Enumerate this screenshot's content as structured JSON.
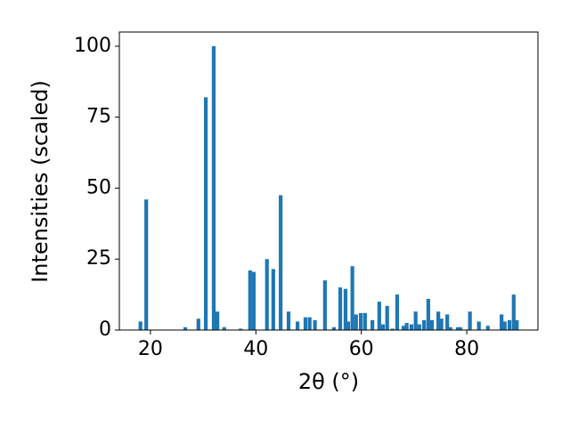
{
  "chart_data": {
    "type": "bar",
    "x_label": "2θ (°)",
    "y_label": "Intensities (scaled)",
    "color": "#1f77b4",
    "x": [
      18.1,
      19.2,
      26.6,
      29.1,
      30.5,
      32.0,
      32.7,
      34.0,
      37.1,
      38.9,
      39.6,
      42.1,
      43.3,
      44.7,
      46.2,
      47.9,
      49.4,
      50.2,
      51.2,
      53.1,
      54.8,
      56.0,
      57.0,
      57.5,
      58.3,
      59.0,
      59.9,
      60.7,
      62.1,
      63.4,
      64.1,
      64.9,
      65.9,
      66.8,
      68.0,
      68.6,
      69.5,
      70.3,
      71.0,
      71.9,
      72.7,
      73.4,
      74.6,
      75.2,
      76.3,
      76.9,
      78.3,
      78.8,
      80.6,
      82.3,
      84.0,
      86.6,
      87.2,
      88.1,
      88.9,
      89.5
    ],
    "values": [
      3,
      46,
      1,
      4,
      82,
      100,
      6.5,
      1,
      0.5,
      21,
      20.5,
      25,
      21.5,
      47.5,
      6.5,
      3,
      4.5,
      4.5,
      3.5,
      17.5,
      1,
      15,
      14.5,
      3,
      22.5,
      5.5,
      6,
      6,
      3.5,
      10,
      2,
      8.5,
      0.5,
      12.5,
      1.5,
      2.5,
      2,
      6.5,
      2,
      3.5,
      11,
      3.5,
      6.5,
      4,
      5.5,
      1,
      1,
      1,
      6.5,
      3,
      1.5,
      5.5,
      3,
      3.5,
      12.5,
      3.5
    ],
    "xlim": [
      14.1,
      93.5
    ],
    "ylim": [
      0,
      105
    ],
    "xticks": [
      20,
      40,
      60,
      80
    ],
    "yticks": [
      0,
      25,
      50,
      75,
      100
    ]
  }
}
